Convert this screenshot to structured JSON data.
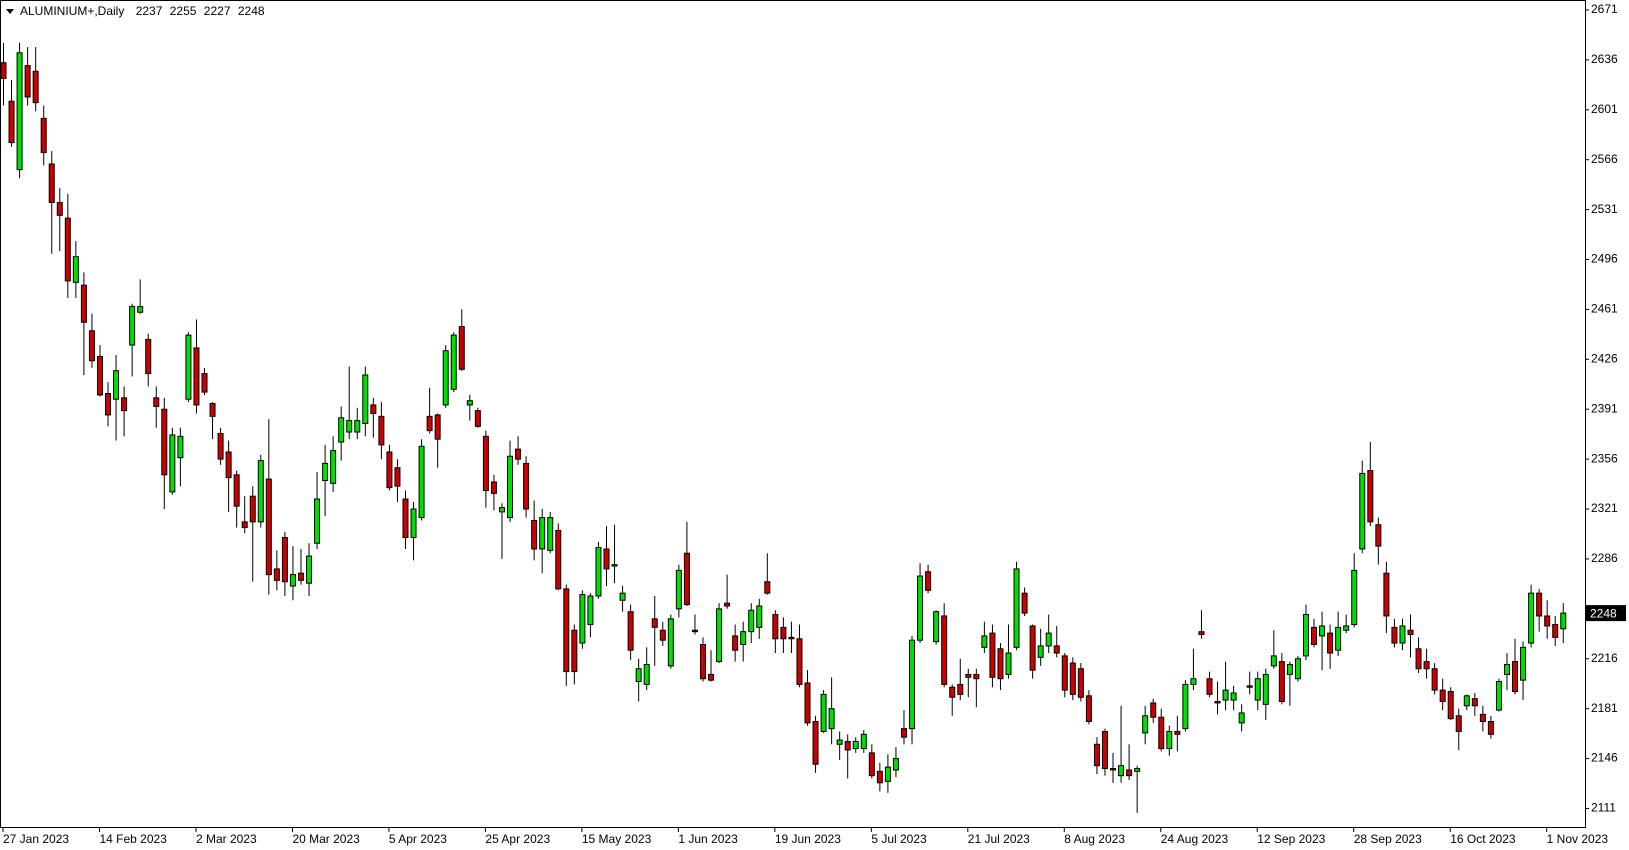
{
  "chart_data": {
    "type": "candlestick",
    "title": "ALUMINIUM+,Daily",
    "categories": [
      "27 Jan 2023",
      null,
      null,
      null,
      null,
      null,
      null,
      null,
      null,
      null,
      null,
      null,
      "14 Feb 2023",
      null,
      null,
      null,
      null,
      null,
      null,
      null,
      null,
      null,
      null,
      null,
      "2 Mar 2023",
      null,
      null,
      null,
      null,
      null,
      null,
      null,
      null,
      null,
      null,
      null,
      "20 Mar 2023",
      null,
      null,
      null,
      null,
      null,
      null,
      null,
      null,
      null,
      null,
      null,
      "5 Apr 2023",
      null,
      null,
      null,
      null,
      null,
      null,
      null,
      null,
      null,
      null,
      null,
      "25 Apr 2023",
      null,
      null,
      null,
      null,
      null,
      null,
      null,
      null,
      null,
      null,
      null,
      "15 May 2023",
      null,
      null,
      null,
      null,
      null,
      null,
      null,
      null,
      null,
      null,
      null,
      "1 Jun 2023",
      null,
      null,
      null,
      null,
      null,
      null,
      null,
      null,
      null,
      null,
      null,
      "19 Jun 2023",
      null,
      null,
      null,
      null,
      null,
      null,
      null,
      null,
      null,
      null,
      null,
      "5 Jul 2023",
      null,
      null,
      null,
      null,
      null,
      null,
      null,
      null,
      null,
      null,
      null,
      "21 Jul 2023",
      null,
      null,
      null,
      null,
      null,
      null,
      null,
      null,
      null,
      null,
      null,
      "8 Aug 2023",
      null,
      null,
      null,
      null,
      null,
      null,
      null,
      null,
      null,
      null,
      null,
      "24 Aug 2023",
      null,
      null,
      null,
      null,
      null,
      null,
      null,
      null,
      null,
      null,
      null,
      "12 Sep 2023",
      null,
      null,
      null,
      null,
      null,
      null,
      null,
      null,
      null,
      null,
      null,
      "28 Sep 2023",
      null,
      null,
      null,
      null,
      null,
      null,
      null,
      null,
      null,
      null,
      null,
      "16 Oct 2023",
      null,
      null,
      null,
      null,
      null,
      null,
      null,
      null,
      null,
      null,
      null,
      "1 Nov 2023",
      null,
      null
    ],
    "open": [
      2634,
      2607,
      2559,
      2632,
      2628,
      2595,
      2563,
      2536,
      2525,
      2480,
      2478,
      2446,
      2428,
      2402,
      2398,
      2399,
      2436,
      2459,
      2440,
      2399,
      2391,
      2333,
      2357,
      2398,
      2434,
      2416,
      2395,
      2374,
      2361,
      2345,
      2312,
      2330,
      2312,
      2342,
      2279,
      2301,
      2267,
      2276,
      2269,
      2297,
      2341,
      2339,
      2368,
      2375,
      2375,
      2381,
      2394,
      2386,
      2361,
      2350,
      2328,
      2301,
      2315,
      2386,
      2387,
      2394,
      2405,
      2449,
      2394,
      2390,
      2372,
      2340,
      2319,
      2315,
      2363,
      2353,
      2313,
      2293,
      2292,
      2306,
      2265,
      2236,
      2227,
      2240,
      2260,
      2293,
      2281,
      2257,
      2249,
      2200,
      2198,
      2244,
      2236,
      2211,
      2251,
      2290,
      2236,
      2226,
      2205,
      2214,
      2255,
      2232,
      2226,
      2235,
      2238,
      2270,
      2247,
      2238,
      2231,
      2230,
      2199,
      2172,
      2165,
      2167,
      2156,
      2158,
      2153,
      2153,
      2150,
      2137,
      2130,
      2138,
      2167,
      2167,
      2229,
      2277,
      2228,
      2246,
      2196,
      2198,
      2205,
      2205,
      2224,
      2234,
      2223,
      2205,
      2224,
      2262,
      2239,
      2217,
      2225,
      2225,
      2218,
      2213,
      2209,
      2190,
      2156,
      2165,
      2139,
      2134,
      2138,
      2137,
      2164,
      2185,
      2175,
      2153,
      2165,
      2167,
      2198,
      2235,
      2202,
      2186,
      2187,
      2187,
      2171,
      2197,
      2187,
      2184,
      2211,
      2214,
      2205,
      2202,
      2218,
      2238,
      2232,
      2234,
      2222,
      2236,
      2240,
      2293,
      2348,
      2310,
      2276,
      2238,
      2227,
      2236,
      2223,
      2214,
      2209,
      2194,
      2193,
      2176,
      2183,
      2188,
      2177,
      2172,
      2180,
      2205,
      2214,
      2201,
      2227,
      2262,
      2246,
      2240,
      2237
    ],
    "high": [
      2648,
      2622,
      2648,
      2645,
      2645,
      2604,
      2572,
      2546,
      2542,
      2509,
      2487,
      2458,
      2436,
      2410,
      2429,
      2407,
      2465,
      2482,
      2444,
      2407,
      2399,
      2378,
      2378,
      2445,
      2454,
      2420,
      2396,
      2378,
      2369,
      2348,
      2330,
      2337,
      2359,
      2384,
      2292,
      2305,
      2295,
      2293,
      2297,
      2347,
      2366,
      2372,
      2393,
      2421,
      2392,
      2421,
      2399,
      2396,
      2366,
      2356,
      2334,
      2326,
      2370,
      2406,
      2388,
      2436,
      2445,
      2461,
      2401,
      2392,
      2376,
      2345,
      2325,
      2369,
      2372,
      2358,
      2327,
      2321,
      2319,
      2311,
      2268,
      2240,
      2264,
      2262,
      2298,
      2309,
      2310,
      2267,
      2254,
      2216,
      2224,
      2260,
      2242,
      2247,
      2282,
      2312,
      2247,
      2231,
      2222,
      2255,
      2275,
      2240,
      2242,
      2255,
      2258,
      2290,
      2250,
      2245,
      2242,
      2240,
      2208,
      2176,
      2194,
      2203,
      2165,
      2163,
      2161,
      2166,
      2156,
      2143,
      2149,
      2154,
      2180,
      2232,
      2283,
      2282,
      2250,
      2255,
      2198,
      2216,
      2209,
      2209,
      2242,
      2240,
      2227,
      2240,
      2284,
      2266,
      2240,
      2237,
      2247,
      2239,
      2220,
      2217,
      2213,
      2194,
      2161,
      2167,
      2150,
      2183,
      2156,
      2141,
      2183,
      2188,
      2181,
      2169,
      2176,
      2201,
      2223,
      2250,
      2207,
      2200,
      2214,
      2197,
      2184,
      2207,
      2207,
      2209,
      2236,
      2220,
      2214,
      2218,
      2254,
      2244,
      2249,
      2240,
      2249,
      2247,
      2290,
      2355,
      2368,
      2315,
      2284,
      2244,
      2244,
      2247,
      2231,
      2223,
      2213,
      2202,
      2196,
      2181,
      2191,
      2192,
      2183,
      2176,
      2202,
      2220,
      2230,
      2228,
      2268,
      2265,
      2257,
      2246,
      2255
    ],
    "low": [
      2604,
      2575,
      2553,
      2604,
      2600,
      2562,
      2500,
      2502,
      2469,
      2469,
      2415,
      2420,
      2400,
      2379,
      2369,
      2372,
      2414,
      2458,
      2407,
      2378,
      2321,
      2331,
      2337,
      2396,
      2388,
      2401,
      2370,
      2352,
      2319,
      2308,
      2304,
      2270,
      2308,
      2261,
      2264,
      2260,
      2257,
      2268,
      2260,
      2293,
      2316,
      2333,
      2355,
      2370,
      2370,
      2372,
      2371,
      2356,
      2334,
      2326,
      2293,
      2285,
      2313,
      2374,
      2350,
      2392,
      2403,
      2418,
      2383,
      2378,
      2322,
      2320,
      2286,
      2312,
      2352,
      2315,
      2285,
      2276,
      2290,
      2264,
      2197,
      2198,
      2223,
      2231,
      2258,
      2267,
      2269,
      2249,
      2215,
      2186,
      2194,
      2211,
      2225,
      2209,
      2245,
      2253,
      2233,
      2200,
      2200,
      2213,
      2251,
      2214,
      2214,
      2227,
      2230,
      2261,
      2220,
      2220,
      2220,
      2196,
      2169,
      2136,
      2164,
      2156,
      2145,
      2132,
      2150,
      2150,
      2132,
      2123,
      2122,
      2133,
      2156,
      2156,
      2227,
      2262,
      2226,
      2196,
      2176,
      2187,
      2189,
      2182,
      2220,
      2196,
      2194,
      2202,
      2222,
      2246,
      2202,
      2211,
      2220,
      2217,
      2189,
      2187,
      2186,
      2170,
      2135,
      2134,
      2129,
      2129,
      2131,
      2108,
      2156,
      2171,
      2151,
      2148,
      2151,
      2165,
      2194,
      2230,
      2189,
      2177,
      2180,
      2180,
      2165,
      2191,
      2180,
      2173,
      2209,
      2184,
      2183,
      2200,
      2215,
      2224,
      2208,
      2209,
      2218,
      2234,
      2238,
      2290,
      2309,
      2282,
      2234,
      2224,
      2222,
      2217,
      2206,
      2202,
      2191,
      2180,
      2173,
      2152,
      2180,
      2176,
      2165,
      2160,
      2179,
      2194,
      2191,
      2187,
      2224,
      2235,
      2230,
      2225,
      2227
    ],
    "close": [
      2623,
      2578,
      2641,
      2610,
      2606,
      2571,
      2536,
      2527,
      2481,
      2498,
      2452,
      2425,
      2401,
      2387,
      2418,
      2390,
      2463,
      2463,
      2416,
      2393,
      2345,
      2373,
      2372,
      2443,
      2394,
      2403,
      2386,
      2356,
      2343,
      2323,
      2308,
      2312,
      2355,
      2275,
      2271,
      2270,
      2275,
      2271,
      2288,
      2328,
      2353,
      2362,
      2385,
      2383,
      2383,
      2415,
      2388,
      2366,
      2336,
      2337,
      2301,
      2321,
      2365,
      2376,
      2370,
      2432,
      2443,
      2419,
      2397,
      2379,
      2334,
      2332,
      2322,
      2358,
      2356,
      2321,
      2293,
      2315,
      2315,
      2265,
      2207,
      2207,
      2261,
      2260,
      2294,
      2279,
      2282,
      2262,
      2222,
      2209,
      2212,
      2238,
      2229,
      2244,
      2278,
      2254,
      2235,
      2202,
      2201,
      2251,
      2253,
      2222,
      2235,
      2250,
      2253,
      2262,
      2230,
      2230,
      2230,
      2198,
      2171,
      2142,
      2191,
      2181,
      2159,
      2152,
      2158,
      2163,
      2134,
      2129,
      2140,
      2146,
      2161,
      2229,
      2274,
      2264,
      2249,
      2198,
      2189,
      2191,
      2203,
      2202,
      2232,
      2203,
      2202,
      2220,
      2279,
      2248,
      2208,
      2225,
      2234,
      2220,
      2194,
      2191,
      2189,
      2172,
      2141,
      2139,
      2138,
      2141,
      2134,
      2139,
      2176,
      2175,
      2153,
      2165,
      2163,
      2198,
      2202,
      2233,
      2191,
      2185,
      2194,
      2192,
      2178,
      2196,
      2202,
      2205,
      2218,
      2186,
      2212,
      2216,
      2247,
      2226,
      2239,
      2220,
      2238,
      2239,
      2278,
      2346,
      2312,
      2295,
      2246,
      2227,
      2239,
      2233,
      2209,
      2209,
      2194,
      2186,
      2174,
      2165,
      2190,
      2183,
      2172,
      2163,
      2200,
      2212,
      2193,
      2224,
      2262,
      2246,
      2239,
      2231,
      2248
    ],
    "ylim": [
      2098,
      2678
    ],
    "yticks": [
      2671,
      2636,
      2601,
      2566,
      2531,
      2496,
      2461,
      2426,
      2391,
      2356,
      2321,
      2286,
      2216,
      2181,
      2146,
      2111
    ],
    "up_color": "#00e000",
    "down_color": "#cc0000",
    "wick_color": "#000000"
  }
}
